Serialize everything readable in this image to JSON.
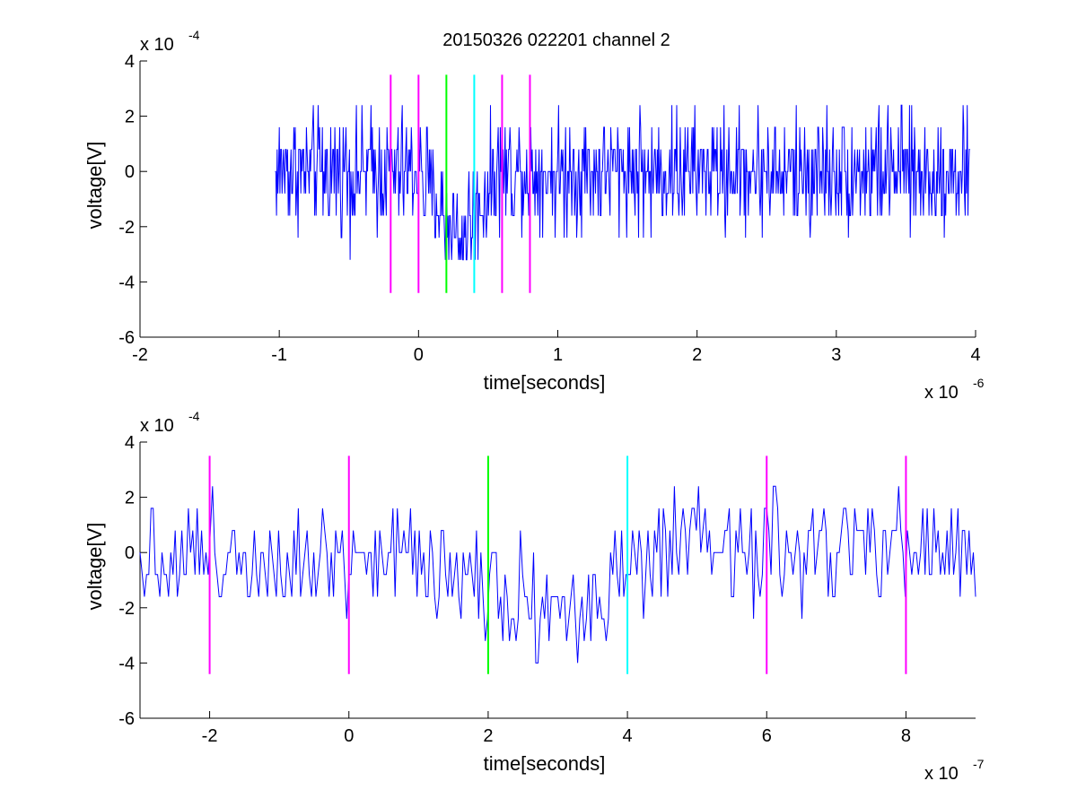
{
  "figure": {
    "title": "20150326 022201 channel 2",
    "background": "#ffffff"
  },
  "chart_data": [
    {
      "type": "line",
      "title": "20150326 022201 channel 2",
      "xlabel": "time[seconds]",
      "ylabel": "voltage[V]",
      "x_exponent_label": "x 10",
      "x_exponent": "-6",
      "y_exponent_label": "x 10",
      "y_exponent": "-4",
      "xlim": [
        -2,
        4
      ],
      "ylim": [
        -6,
        4
      ],
      "xticks": [
        -2,
        -1,
        0,
        1,
        2,
        3,
        4
      ],
      "xtick_labels": [
        "-2",
        "-1",
        "0",
        "1",
        "2",
        "3",
        "4"
      ],
      "yticks": [
        -6,
        -4,
        -2,
        0,
        2,
        4
      ],
      "ytick_labels": [
        "-6",
        "-4",
        "-2",
        "0",
        "2",
        "4"
      ],
      "grid": false,
      "series": [
        {
          "color": "#0000ff",
          "style": "noisy-trace",
          "x_range": [
            -1.03,
            3.96
          ],
          "baseline": 0,
          "noise_levels": [
            -3.2,
            -2.4,
            -1.6,
            -0.8,
            0,
            0.8,
            1.6,
            2.4,
            3.2
          ],
          "dip": {
            "x_start": 0.0,
            "x_center": 0.3,
            "x_end": 0.55,
            "depth": -2.6
          }
        }
      ],
      "markers": [
        {
          "x": -0.2,
          "color": "#ff00ff"
        },
        {
          "x": 0.0,
          "color": "#ff00ff"
        },
        {
          "x": 0.2,
          "color": "#00ff00"
        },
        {
          "x": 0.4,
          "color": "#00ffff"
        },
        {
          "x": 0.6,
          "color": "#ff00ff"
        },
        {
          "x": 0.8,
          "color": "#ff00ff"
        }
      ],
      "marker_yrange": [
        -4.4,
        3.5
      ]
    },
    {
      "type": "line",
      "title": "",
      "xlabel": "time[seconds]",
      "ylabel": "voltage[V]",
      "x_exponent_label": "x 10",
      "x_exponent": "-7",
      "y_exponent_label": "x 10",
      "y_exponent": "-4",
      "xlim": [
        -3,
        9
      ],
      "ylim": [
        -6,
        4
      ],
      "xticks": [
        -2,
        0,
        2,
        4,
        6,
        8
      ],
      "xtick_labels": [
        "-2",
        "0",
        "2",
        "4",
        "6",
        "8"
      ],
      "yticks": [
        -6,
        -4,
        -2,
        0,
        2,
        4
      ],
      "ytick_labels": [
        "-6",
        "-4",
        "-2",
        "0",
        "2",
        "4"
      ],
      "grid": false,
      "series": [
        {
          "color": "#0000ff",
          "style": "noisy-trace",
          "x_range": [
            -3,
            9
          ],
          "baseline": 0,
          "noise_levels": [
            -4.0,
            -3.2,
            -2.4,
            -1.6,
            -0.8,
            0,
            0.8,
            1.6,
            2.4
          ],
          "dip": {
            "x_start": 1.0,
            "x_center": 3.2,
            "x_end": 4.6,
            "depth": -2.3
          }
        }
      ],
      "markers": [
        {
          "x": -2,
          "color": "#ff00ff"
        },
        {
          "x": 0,
          "color": "#ff00ff"
        },
        {
          "x": 2,
          "color": "#00ff00"
        },
        {
          "x": 4,
          "color": "#00ffff"
        },
        {
          "x": 6,
          "color": "#ff00ff"
        },
        {
          "x": 8,
          "color": "#ff00ff"
        }
      ],
      "marker_yrange": [
        -4.4,
        3.5
      ]
    }
  ]
}
